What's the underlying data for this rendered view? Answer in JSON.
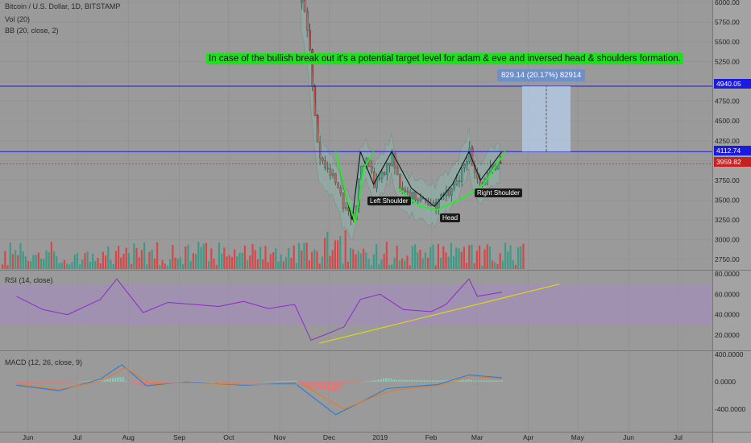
{
  "header": {
    "symbol": "Bitcoin / U.S. Dollar, 1D, BITSTAMP",
    "vol": "Vol (20)",
    "bb": "BB (20, close, 2)",
    "rsi": "RSI (14, close)",
    "macd": "MACD (12, 26, close, 9)"
  },
  "annotation": "In case of the bullish break out it's a potential target level for adam & eve and inversed head & shoulders formation.",
  "measure_label": "829.14 (20.17%) 82914",
  "pattern_labels": {
    "left": "Left Shoulder",
    "head": "Head",
    "right": "Right Shoulder"
  },
  "price_labels": {
    "target": "4940.05",
    "neckline": "4112.74",
    "last": "3959.82"
  },
  "colors": {
    "background": "#9a9a9a",
    "blue_line": "#1a1ae0",
    "red_line": "#c82020",
    "pattern": "#22ee22",
    "candle_up": "#2c9a82",
    "candle_down": "#e03a3a",
    "rsi_line": "#8a2bc8",
    "rsi_band": "#a78bc4",
    "trend": "#e8e000",
    "macd_line": "#2a7ad8",
    "signal_line": "#e87a20"
  },
  "chart_data": [
    {
      "type": "candlestick",
      "title": "Bitcoin / U.S. Dollar, 1D, BITSTAMP",
      "x_ticks": [
        "Jun",
        "Jul",
        "Aug",
        "Sep",
        "Oct",
        "Nov",
        "Dec",
        "2019",
        "Feb",
        "Mar",
        "Apr",
        "May",
        "Jun",
        "Jul"
      ],
      "y_ticks": [
        "6000.00",
        "5750.00",
        "5500.00",
        "5250.00",
        "5000.00",
        "4750.00",
        "4500.00",
        "4250.00",
        "4000.00",
        "3750.00",
        "3500.00",
        "3250.00",
        "3000.00",
        "2750.00"
      ],
      "ylim": [
        2650,
        6050
      ],
      "horizontal_lines": [
        4940.05,
        4112.74,
        3959.82
      ],
      "price_close_path": [
        [
          "2018-11-14",
          6000
        ],
        [
          "2018-11-18",
          5600
        ],
        [
          "2018-11-22",
          4500
        ],
        [
          "2018-11-25",
          4000
        ],
        [
          "2018-11-29",
          3900
        ],
        [
          "2018-12-05",
          3700
        ],
        [
          "2018-12-10",
          3400
        ],
        [
          "2018-12-15",
          3200
        ],
        [
          "2018-12-20",
          3950
        ],
        [
          "2018-12-24",
          4000
        ],
        [
          "2018-12-28",
          3700
        ],
        [
          "2019-01-03",
          3850
        ],
        [
          "2019-01-08",
          4050
        ],
        [
          "2019-01-13",
          3650
        ],
        [
          "2019-01-20",
          3550
        ],
        [
          "2019-01-28",
          3500
        ],
        [
          "2019-02-03",
          3420
        ],
        [
          "2019-02-08",
          3550
        ],
        [
          "2019-02-14",
          3620
        ],
        [
          "2019-02-20",
          3900
        ],
        [
          "2019-02-24",
          4150
        ],
        [
          "2019-02-26",
          3800
        ],
        [
          "2019-03-04",
          3750
        ],
        [
          "2019-03-10",
          3900
        ],
        [
          "2019-03-16",
          3960
        ]
      ],
      "volume_shown": true
    },
    {
      "type": "line",
      "title": "RSI (14, close)",
      "y_ticks": [
        "80.0000",
        "60.0000",
        "40.0000",
        "20.0000"
      ],
      "ylim": [
        10,
        82
      ],
      "band": [
        30,
        70
      ],
      "series": [
        {
          "values": [
            [
              "2018-05-25",
              58
            ],
            [
              "2018-06-10",
              45
            ],
            [
              "2018-06-25",
              40
            ],
            [
              "2018-07-15",
              55
            ],
            [
              "2018-07-25",
              75
            ],
            [
              "2018-08-10",
              42
            ],
            [
              "2018-08-25",
              52
            ],
            [
              "2018-09-10",
              50
            ],
            [
              "2018-09-25",
              48
            ],
            [
              "2018-10-10",
              53
            ],
            [
              "2018-10-25",
              46
            ],
            [
              "2018-11-10",
              50
            ],
            [
              "2018-11-20",
              15
            ],
            [
              "2018-11-28",
              20
            ],
            [
              "2018-12-10",
              28
            ],
            [
              "2018-12-20",
              55
            ],
            [
              "2019-01-01",
              60
            ],
            [
              "2019-01-15",
              45
            ],
            [
              "2019-02-01",
              43
            ],
            [
              "2019-02-10",
              50
            ],
            [
              "2019-02-24",
              75
            ],
            [
              "2019-03-01",
              58
            ],
            [
              "2019-03-16",
              62
            ]
          ]
        }
      ],
      "trendline": [
        [
          "2018-11-25",
          12
        ],
        [
          "2019-04-20",
          70
        ]
      ]
    },
    {
      "type": "bar",
      "title": "MACD (12, 26, close, 9)",
      "y_ticks": [
        "400.0000",
        "0.0000",
        "-400.0000"
      ],
      "ylim": [
        -600,
        500
      ],
      "series": [
        {
          "values": [
            [
              "2018-05-25",
              -50
            ],
            [
              "2018-06-20",
              -130
            ],
            [
              "2018-07-15",
              40
            ],
            [
              "2018-07-28",
              250
            ],
            [
              "2018-08-12",
              -60
            ],
            [
              "2018-09-05",
              0
            ],
            [
              "2018-10-10",
              -50
            ],
            [
              "2018-11-10",
              -20
            ],
            [
              "2018-12-05",
              -480
            ],
            [
              "2018-12-20",
              -300
            ],
            [
              "2019-01-05",
              -100
            ],
            [
              "2019-02-05",
              -40
            ],
            [
              "2019-02-24",
              100
            ],
            [
              "2019-03-16",
              60
            ]
          ]
        },
        {
          "values": [
            [
              "2018-05-25",
              -30
            ],
            [
              "2018-06-20",
              -110
            ],
            [
              "2018-07-15",
              10
            ],
            [
              "2018-07-30",
              200
            ],
            [
              "2018-08-15",
              -30
            ],
            [
              "2018-09-05",
              -10
            ],
            [
              "2018-10-10",
              -40
            ],
            [
              "2018-11-15",
              -40
            ],
            [
              "2018-12-10",
              -400
            ],
            [
              "2018-12-28",
              -220
            ],
            [
              "2019-01-10",
              -120
            ],
            [
              "2019-02-05",
              -60
            ],
            [
              "2019-02-26",
              80
            ],
            [
              "2019-03-16",
              40
            ]
          ]
        }
      ]
    }
  ]
}
